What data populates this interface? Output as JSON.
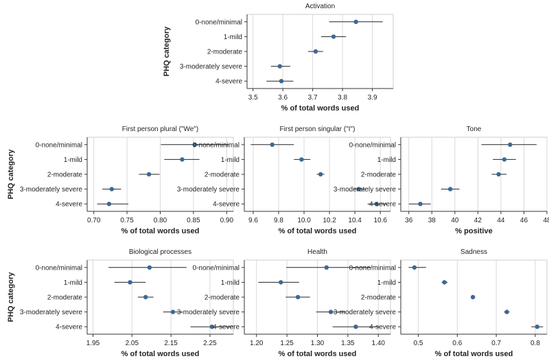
{
  "y_axis_title": "PHQ category",
  "chart_data": [
    {
      "type": "dot-errorbar",
      "title": "Activation",
      "xlabel": "% of total words used",
      "categories": [
        "0-none/minimal",
        "1-mild",
        "2-moderate",
        "3-moderately severe",
        "4-severe"
      ],
      "values": [
        3.845,
        3.77,
        3.71,
        3.59,
        3.595
      ],
      "ci_low": [
        3.755,
        3.728,
        3.685,
        3.56,
        3.545
      ],
      "ci_high": [
        3.935,
        3.812,
        3.735,
        3.625,
        3.635
      ],
      "xlim": [
        3.48,
        3.97
      ],
      "xticks": [
        3.5,
        3.6,
        3.7,
        3.8,
        3.9
      ],
      "xtick_labels": [
        "3.5",
        "3.6",
        "3.7",
        "3.8",
        "3.9"
      ]
    },
    {
      "type": "dot-errorbar",
      "title": "First person plural (\"We\")",
      "xlabel": "% of total words used",
      "categories": [
        "0-none/minimal",
        "1-mild",
        "2-moderate",
        "3-moderately severe",
        "4-severe"
      ],
      "values": [
        0.852,
        0.833,
        0.783,
        0.727,
        0.723
      ],
      "ci_low": [
        0.801,
        0.806,
        0.768,
        0.713,
        0.705
      ],
      "ci_high": [
        0.903,
        0.859,
        0.799,
        0.741,
        0.752
      ],
      "xlim": [
        0.69,
        0.91
      ],
      "xticks": [
        0.7,
        0.75,
        0.8,
        0.85,
        0.9
      ],
      "xtick_labels": [
        "0.70",
        "0.75",
        "0.80",
        "0.85",
        "0.90"
      ]
    },
    {
      "type": "dot-errorbar",
      "title": "First person singular (\"I\")",
      "xlabel": "% of total words used",
      "categories": [
        "0-none/minimal",
        "1-mild",
        "2-moderate",
        "3-moderately severe",
        "4-severe"
      ],
      "values": [
        9.75,
        9.98,
        10.13,
        10.43,
        10.57
      ],
      "ci_low": [
        9.58,
        9.92,
        10.1,
        10.39,
        10.5
      ],
      "ci_high": [
        9.92,
        10.05,
        10.16,
        10.48,
        10.65
      ],
      "xlim": [
        9.53,
        10.68
      ],
      "xticks": [
        9.6,
        9.8,
        10.0,
        10.2,
        10.4,
        10.6
      ],
      "xtick_labels": [
        "9.6",
        "9.8",
        "10.0",
        "10.2",
        "10.4",
        "10.6"
      ]
    },
    {
      "type": "dot-errorbar",
      "title": "Tone",
      "xlabel": "% positive",
      "categories": [
        "0-none/minimal",
        "1-mild",
        "2-moderate",
        "3-moderately severe",
        "4-severe"
      ],
      "values": [
        44.8,
        44.3,
        43.8,
        39.6,
        37.0
      ],
      "ci_low": [
        42.3,
        43.3,
        43.2,
        38.8,
        36.0
      ],
      "ci_high": [
        47.1,
        45.3,
        44.5,
        40.4,
        37.9
      ],
      "xlim": [
        35.3,
        48.0
      ],
      "xticks": [
        36,
        38,
        40,
        42,
        44,
        46,
        48
      ],
      "xtick_labels": [
        "36",
        "38",
        "40",
        "42",
        "44",
        "46",
        "48"
      ]
    },
    {
      "type": "dot-errorbar",
      "title": "Biological processes",
      "xlabel": "% of total words used",
      "categories": [
        "0-none/minimal",
        "1-mild",
        "2-moderate",
        "3-moderately severe",
        "4-severe"
      ],
      "values": [
        2.095,
        2.045,
        2.085,
        2.155,
        2.255
      ],
      "ci_low": [
        1.99,
        2.005,
        2.065,
        2.13,
        2.2
      ],
      "ci_high": [
        2.19,
        2.085,
        2.105,
        2.18,
        2.31
      ],
      "xlim": [
        1.935,
        2.31
      ],
      "xticks": [
        1.95,
        2.05,
        2.15,
        2.25
      ],
      "xtick_labels": [
        "1.95",
        "2.05",
        "2.15",
        "2.25"
      ]
    },
    {
      "type": "dot-errorbar",
      "title": "Health",
      "xlabel": "% of total words used",
      "categories": [
        "0-none/minimal",
        "1-mild",
        "2-moderate",
        "3-moderately severe",
        "4-severe"
      ],
      "values": [
        1.315,
        1.24,
        1.268,
        1.322,
        1.363
      ],
      "ci_low": [
        1.249,
        1.203,
        1.248,
        1.298,
        1.325
      ],
      "ci_high": [
        1.388,
        1.27,
        1.288,
        1.346,
        1.402
      ],
      "xlim": [
        1.18,
        1.42
      ],
      "xticks": [
        1.2,
        1.25,
        1.3,
        1.35,
        1.4
      ],
      "xtick_labels": [
        "1.20",
        "1.25",
        "1.30",
        "1.35",
        "1.40"
      ]
    },
    {
      "type": "dot-errorbar",
      "title": "Sadness",
      "xlabel": "% of total words used",
      "categories": [
        "0-none/minimal",
        "1-mild",
        "2-moderate",
        "3-moderately severe",
        "4-severe"
      ],
      "values": [
        0.49,
        0.567,
        0.64,
        0.727,
        0.805
      ],
      "ci_low": [
        0.475,
        0.56,
        0.635,
        0.72,
        0.79
      ],
      "ci_high": [
        0.52,
        0.575,
        0.646,
        0.734,
        0.82
      ],
      "xlim": [
        0.455,
        0.83
      ],
      "xticks": [
        0.5,
        0.6,
        0.7,
        0.8
      ],
      "xtick_labels": [
        "0.5",
        "0.6",
        "0.7",
        "0.8"
      ]
    }
  ],
  "colors": {
    "point": "#3b6994",
    "errorbar": "#222222",
    "grid": "#d9d9d9",
    "frame": "#cccccc",
    "axis": "#333333"
  }
}
